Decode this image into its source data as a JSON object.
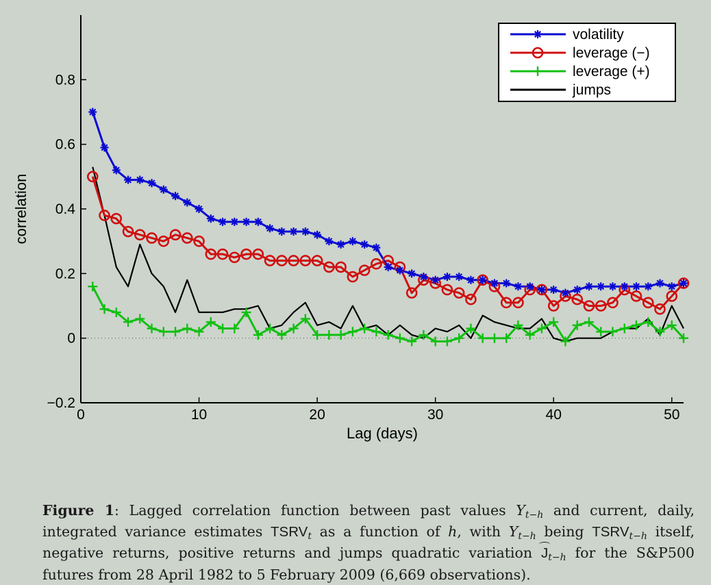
{
  "chart_data": {
    "type": "line",
    "xlabel": "Lag (days)",
    "ylabel": "correlation",
    "xlim": [
      0,
      51
    ],
    "ylim": [
      -0.2,
      1.0
    ],
    "xticks": [
      0,
      10,
      20,
      30,
      40,
      50
    ],
    "yticks": [
      -0.2,
      0,
      0.2,
      0.4,
      0.6,
      0.8
    ],
    "ytick_labels": [
      "−0.2",
      "0",
      "0.2",
      "0.4",
      "0.6",
      "0.8"
    ],
    "legend_position": "top-right",
    "zero_line": true,
    "x": [
      1,
      2,
      3,
      4,
      5,
      6,
      7,
      8,
      9,
      10,
      11,
      12,
      13,
      14,
      15,
      16,
      17,
      18,
      19,
      20,
      21,
      22,
      23,
      24,
      25,
      26,
      27,
      28,
      29,
      30,
      31,
      32,
      33,
      34,
      35,
      36,
      37,
      38,
      39,
      40,
      41,
      42,
      43,
      44,
      45,
      46,
      47,
      48,
      49,
      50,
      51
    ],
    "series": [
      {
        "name": "volatility",
        "color": "#0a0ad2",
        "marker": "asterisk",
        "values": [
          0.7,
          0.59,
          0.52,
          0.49,
          0.49,
          0.48,
          0.46,
          0.44,
          0.42,
          0.4,
          0.37,
          0.36,
          0.36,
          0.36,
          0.36,
          0.34,
          0.33,
          0.33,
          0.33,
          0.32,
          0.3,
          0.29,
          0.3,
          0.29,
          0.28,
          0.22,
          0.21,
          0.2,
          0.19,
          0.18,
          0.19,
          0.19,
          0.18,
          0.18,
          0.17,
          0.17,
          0.16,
          0.16,
          0.15,
          0.15,
          0.14,
          0.15,
          0.16,
          0.16,
          0.16,
          0.16,
          0.16,
          0.16,
          0.17,
          0.16,
          0.17
        ]
      },
      {
        "name": "leverage (−)",
        "color": "#d01010",
        "marker": "circle",
        "values": [
          0.5,
          0.38,
          0.37,
          0.33,
          0.32,
          0.31,
          0.3,
          0.32,
          0.31,
          0.3,
          0.26,
          0.26,
          0.25,
          0.26,
          0.26,
          0.24,
          0.24,
          0.24,
          0.24,
          0.24,
          0.22,
          0.22,
          0.19,
          0.21,
          0.23,
          0.24,
          0.22,
          0.14,
          0.18,
          0.17,
          0.15,
          0.14,
          0.12,
          0.18,
          0.16,
          0.11,
          0.11,
          0.15,
          0.15,
          0.1,
          0.13,
          0.12,
          0.1,
          0.1,
          0.11,
          0.15,
          0.13,
          0.11,
          0.09,
          0.13,
          0.17
        ]
      },
      {
        "name": "leverage (+)",
        "color": "#12c012",
        "marker": "plus",
        "values": [
          0.16,
          0.09,
          0.08,
          0.05,
          0.06,
          0.03,
          0.02,
          0.02,
          0.03,
          0.02,
          0.05,
          0.03,
          0.03,
          0.08,
          0.01,
          0.03,
          0.01,
          0.03,
          0.06,
          0.01,
          0.01,
          0.01,
          0.02,
          0.03,
          0.02,
          0.01,
          0.0,
          -0.01,
          0.01,
          -0.01,
          -0.01,
          0.0,
          0.03,
          0.0,
          0.0,
          0.0,
          0.04,
          0.01,
          0.03,
          0.05,
          -0.01,
          0.04,
          0.05,
          0.02,
          0.02,
          0.03,
          0.04,
          0.05,
          0.02,
          0.04,
          0.0
        ]
      },
      {
        "name": "jumps",
        "color": "#000000",
        "marker": "none",
        "values": [
          0.53,
          0.38,
          0.22,
          0.16,
          0.29,
          0.2,
          0.16,
          0.08,
          0.18,
          0.08,
          0.08,
          0.08,
          0.09,
          0.09,
          0.1,
          0.03,
          0.04,
          0.08,
          0.11,
          0.04,
          0.05,
          0.03,
          0.1,
          0.03,
          0.04,
          0.01,
          0.04,
          0.01,
          0.0,
          0.03,
          0.02,
          0.04,
          0.0,
          0.07,
          0.05,
          0.04,
          0.03,
          0.03,
          0.06,
          0.0,
          -0.01,
          0.0,
          0.0,
          0.0,
          0.02,
          0.03,
          0.03,
          0.06,
          0.01,
          0.1,
          0.03
        ]
      }
    ]
  },
  "caption": {
    "label": "Figure 1",
    "line1_text": ": Lagged correlation function between past values ",
    "var_y": "Y",
    "sub_t_minus_h": "t−h",
    "line1_mid": " and current, daily,",
    "line2_start": "integrated variance estimates ",
    "tsrv": "TSRV",
    "sub_t": "t",
    "line2_mid": " as a function of ",
    "var_h": "h",
    "line2_mid2": ", with ",
    "line2_mid3": " being ",
    "line3_start": "itself, negative returns, positive returns and jumps quadratic variation ",
    "var_j": "J",
    "line3_end": " for the",
    "line4": "S&P500 futures from 28 April 1982 to 5 February 2009 (6,669 observations)."
  }
}
